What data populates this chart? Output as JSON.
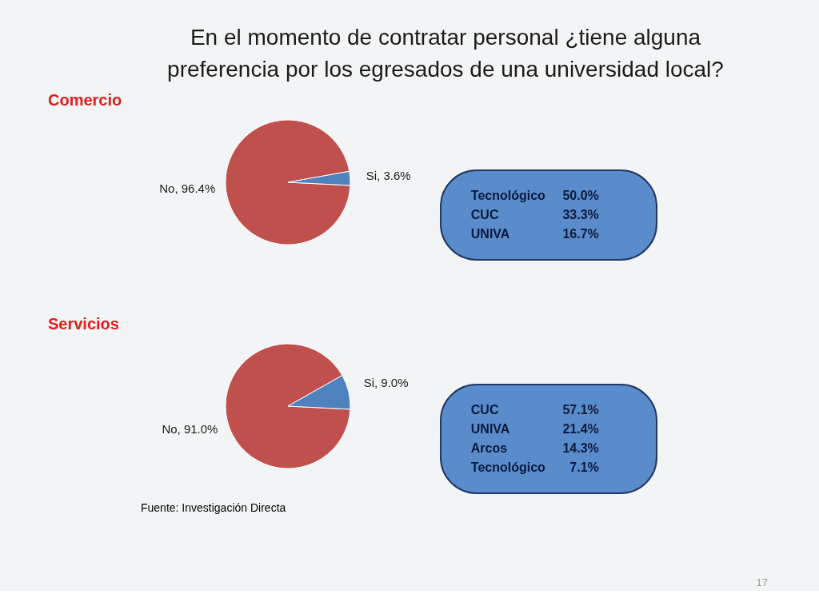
{
  "chart_data": [
    {
      "type": "pie",
      "title": "En el momento de contratar personal ¿tiene alguna preferencia por los egresados de una universidad local?",
      "subtitle": "Comercio",
      "categories": [
        "No",
        "Si"
      ],
      "values": [
        96.4,
        3.6
      ],
      "value_labels": [
        "96.4%",
        "3.6%"
      ],
      "colors": [
        "#c0504d",
        "#4f81bd"
      ]
    },
    {
      "type": "other",
      "annotations": [
        "Tecnológico 50.0%",
        "CUC 33.3%",
        "UNIVA 16.7%"
      ]
    },
    {
      "type": "pie",
      "title": "Servicios",
      "categories": [
        "No",
        "Si"
      ],
      "values": [
        91.0,
        9.0
      ],
      "value_labels": [
        "91.0%",
        "9.0%"
      ],
      "colors": [
        "#c0504d",
        "#4f81bd"
      ],
      "annotations": [
        "Fuente: Investigación Directa",
        "17"
      ]
    },
    {
      "type": "other",
      "annotations": [
        "CUC 57.1%",
        "UNIVA 21.4%",
        "Arcos 14.3%",
        "Tecnológico 7.1%"
      ]
    }
  ]
}
